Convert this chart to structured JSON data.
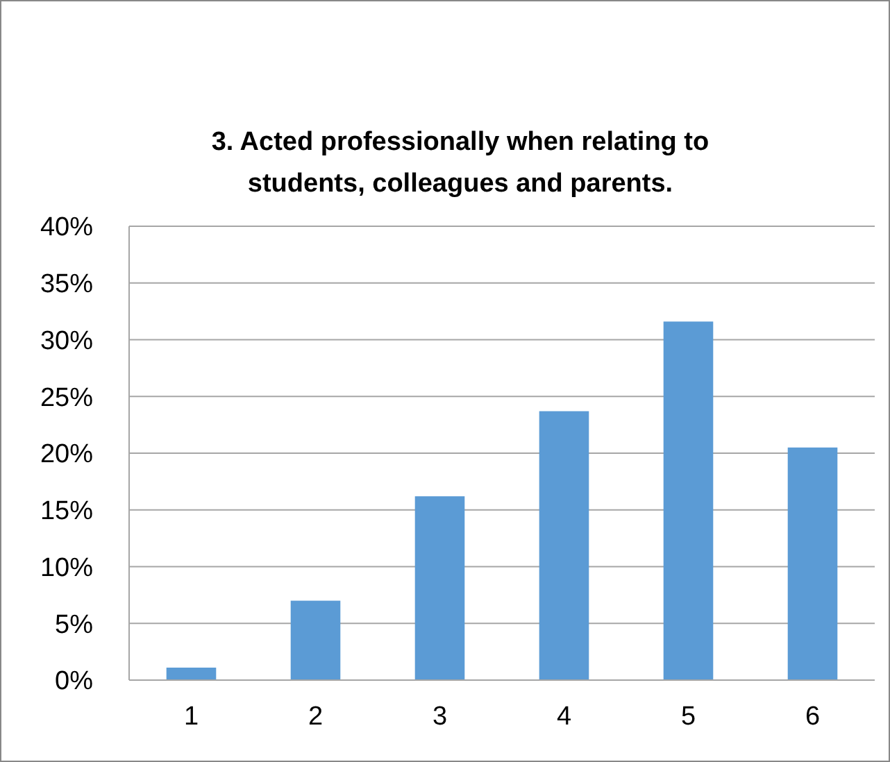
{
  "chart_data": {
    "type": "bar",
    "title": "3. Acted professionally when relating to students, colleagues and parents.",
    "categories": [
      "1",
      "2",
      "3",
      "4",
      "5",
      "6"
    ],
    "values": [
      1.1,
      7.0,
      16.2,
      23.7,
      31.6,
      20.5
    ],
    "color": "#5b9bd5",
    "ylim": [
      0,
      40
    ],
    "yticks": [
      {
        "value": 0,
        "label": "0%"
      },
      {
        "value": 5,
        "label": "5%"
      },
      {
        "value": 10,
        "label": "10%"
      },
      {
        "value": 15,
        "label": "15%"
      },
      {
        "value": 20,
        "label": "20%"
      },
      {
        "value": 25,
        "label": "25%"
      },
      {
        "value": 30,
        "label": "30%"
      },
      {
        "value": 35,
        "label": "35%"
      },
      {
        "value": 40,
        "label": "40%"
      }
    ],
    "grid": "y"
  }
}
